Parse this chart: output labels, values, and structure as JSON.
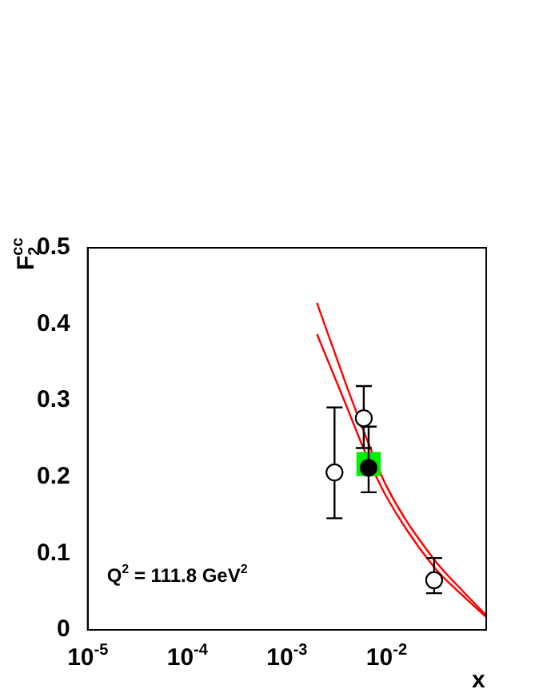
{
  "chart_data": {
    "type": "scatter",
    "xlabel": "x",
    "ylabel": "F$_{2}$$^{cc}$",
    "annotations": [
      {
        "text": "Q$^{2}$ = 111.8 GeV$^{2}$"
      }
    ],
    "log": "x",
    "xlim": [
      1e-05,
      0.1
    ],
    "xticks": [
      {
        "value": 1e-05,
        "label": "10$^{-5}$"
      },
      {
        "value": 0.0001,
        "label": "10$^{-4}$"
      },
      {
        "value": 0.001,
        "label": "10$^{-3}$"
      },
      {
        "value": 0.01,
        "label": "10$^{-2}$"
      }
    ],
    "ylim": [
      0,
      0.5
    ],
    "yticks": [
      0,
      0.1,
      0.2,
      0.3,
      0.4,
      0.5
    ],
    "grid": false,
    "legend": false,
    "series": [
      {
        "type": "line",
        "color": "#ff0000",
        "marker": "none",
        "x": [
          0.002,
          0.0039,
          0.0059,
          0.0098,
          0.03,
          0.059,
          0.1
        ],
        "values": [
          0.428,
          0.322,
          0.26,
          0.19,
          0.092,
          0.05,
          0.019
        ]
      },
      {
        "type": "line",
        "color": "#ff0000",
        "marker": "none",
        "x": [
          0.002,
          0.0039,
          0.0059,
          0.0098,
          0.03,
          0.059,
          0.1
        ],
        "values": [
          0.387,
          0.295,
          0.237,
          0.176,
          0.082,
          0.044,
          0.017
        ]
      },
      {
        "type": "scatter",
        "color": "#ffffff",
        "marker": "circle",
        "x": [
          0.003,
          0.0059,
          0.03
        ],
        "values": [
          0.206,
          0.277,
          0.065
        ],
        "errors": [
          [
            0.146,
            0.291
          ],
          [
            0.238,
            0.319
          ],
          [
            0.048,
            0.094
          ]
        ]
      },
      {
        "type": "scatter",
        "color": "#00ee00",
        "marker": "square",
        "x": [
          0.0066
        ],
        "values": [
          0.217
        ]
      },
      {
        "type": "scatter",
        "color": "#000000",
        "marker": "circle",
        "x": [
          0.0066
        ],
        "values": [
          0.212
        ],
        "errors": [
          [
            0.18,
            0.266
          ]
        ]
      }
    ]
  }
}
